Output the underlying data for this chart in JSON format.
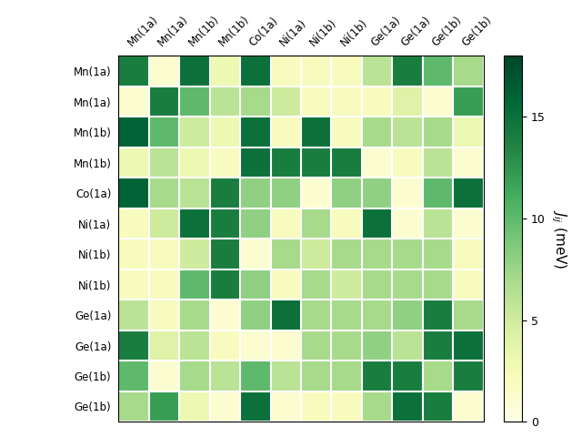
{
  "labels": [
    "Mn(1a)",
    "Mn(1a)",
    "Mn(1b)",
    "Mn(1b)",
    "Co(1a)",
    "Ni(1a)",
    "Ni(1b)",
    "Ni(1b)",
    "Ge(1a)",
    "Ge(1a)",
    "Ge(1b)",
    "Ge(1b)"
  ],
  "matrix": [
    [
      14,
      1,
      15,
      3,
      15,
      2,
      2,
      2,
      6,
      14,
      10,
      7
    ],
    [
      1,
      14,
      10,
      6,
      7,
      5,
      2,
      2,
      2,
      4,
      1,
      12
    ],
    [
      16,
      10,
      5,
      3,
      15,
      2,
      15,
      2,
      7,
      6,
      7,
      3
    ],
    [
      3,
      6,
      3,
      2,
      15,
      14,
      14,
      14,
      1,
      2,
      6,
      1
    ],
    [
      16,
      7,
      6,
      14,
      8,
      8,
      1,
      8,
      8,
      1,
      10,
      15
    ],
    [
      2,
      5,
      15,
      14,
      8,
      2,
      7,
      2,
      15,
      1,
      6,
      1
    ],
    [
      2,
      2,
      5,
      14,
      1,
      7,
      5,
      7,
      7,
      7,
      7,
      2
    ],
    [
      2,
      2,
      10,
      14,
      8,
      2,
      7,
      5,
      7,
      7,
      7,
      2
    ],
    [
      6,
      2,
      7,
      1,
      8,
      15,
      7,
      7,
      7,
      8,
      14,
      7
    ],
    [
      14,
      4,
      6,
      2,
      1,
      1,
      7,
      7,
      8,
      6,
      14,
      15
    ],
    [
      10,
      1,
      7,
      6,
      10,
      6,
      7,
      7,
      14,
      14,
      7,
      14
    ],
    [
      7,
      12,
      3,
      1,
      15,
      1,
      2,
      2,
      7,
      15,
      14,
      1
    ]
  ],
  "vmin": 0,
  "vmax": 18,
  "colorbar_ticks": [
    0,
    5,
    10,
    15
  ],
  "colorbar_label": "$J_{ij}$ (meV)",
  "cmap": "YlGn",
  "figsize": [
    6.4,
    4.8
  ],
  "dpi": 100
}
